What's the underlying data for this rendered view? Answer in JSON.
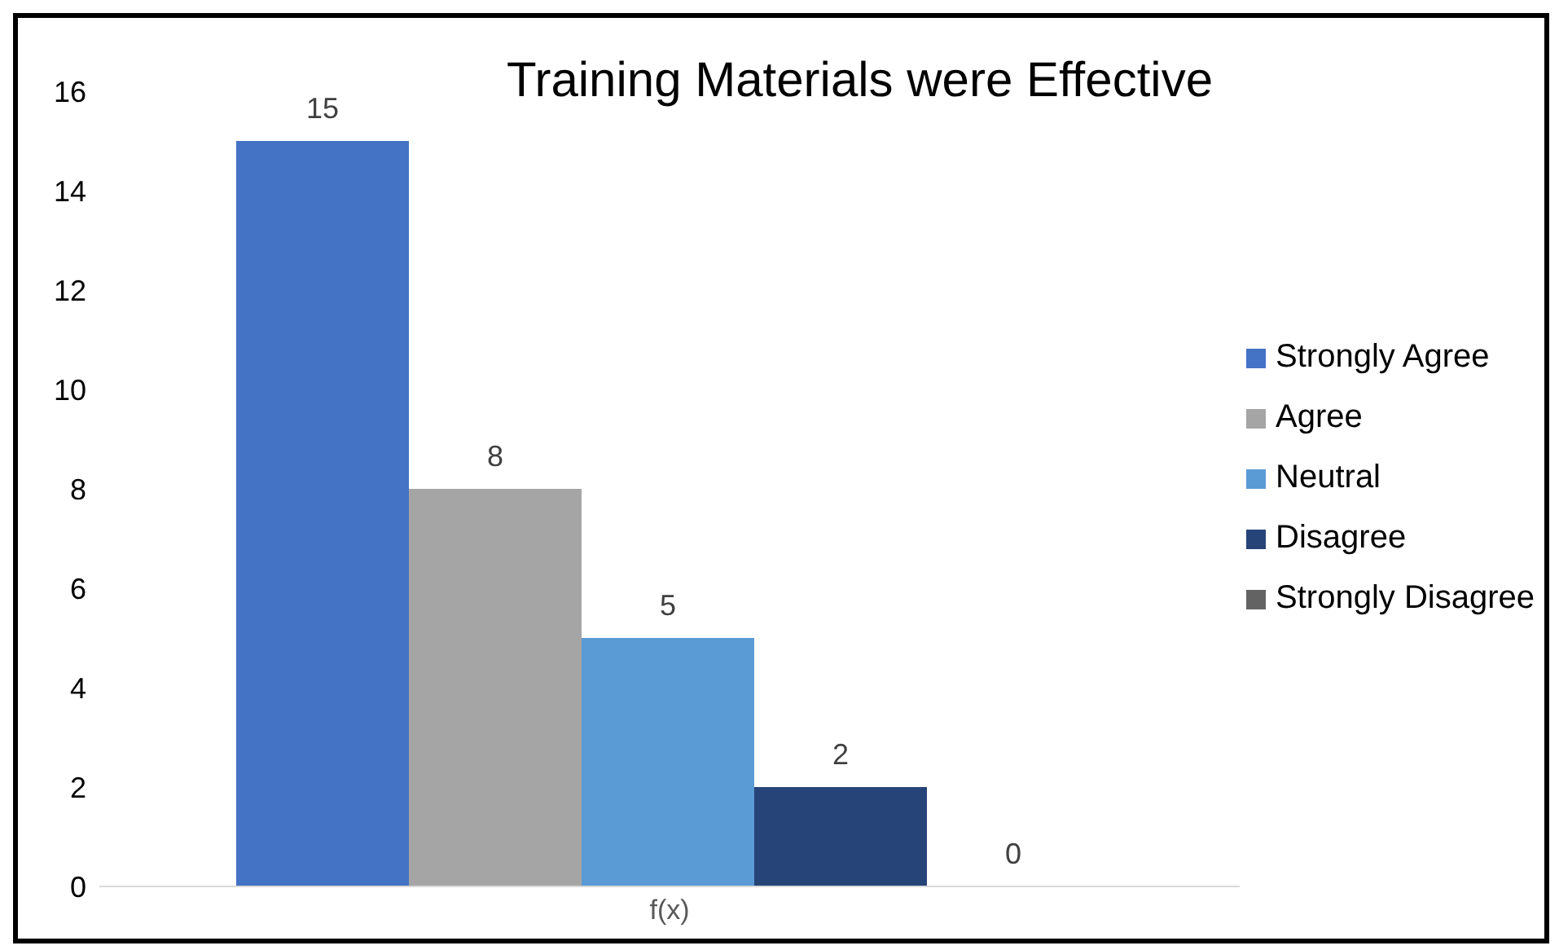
{
  "chart_data": {
    "type": "bar",
    "title": "Training Materials were Effective",
    "categories": [
      "f(x)"
    ],
    "series": [
      {
        "name": "Strongly Agree",
        "color": "#4472c4",
        "values": [
          15
        ]
      },
      {
        "name": "Agree",
        "color": "#a5a5a5",
        "values": [
          8
        ]
      },
      {
        "name": "Neutral",
        "color": "#5b9bd5",
        "values": [
          5
        ]
      },
      {
        "name": "Disagree",
        "color": "#264478",
        "values": [
          2
        ]
      },
      {
        "name": "Strongly Disagree",
        "color": "#636363",
        "values": [
          0
        ]
      }
    ],
    "ylim": [
      0,
      16
    ],
    "yticks": [
      0,
      2,
      4,
      6,
      8,
      10,
      12,
      14,
      16
    ],
    "data_labels": true,
    "grid": false,
    "legend": "right"
  }
}
